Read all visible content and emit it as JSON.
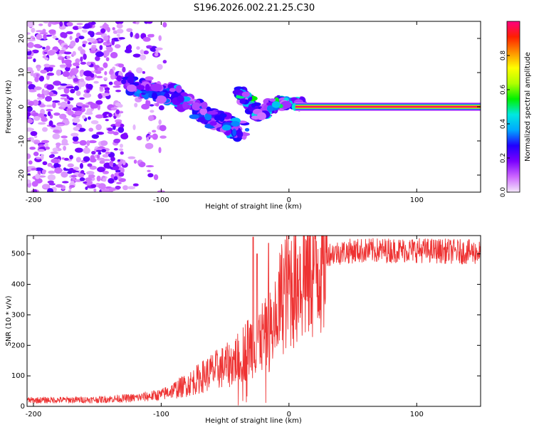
{
  "title": "S196.2026.002.21.25.C30",
  "chart_data": [
    {
      "type": "heatmap",
      "xlabel": "Height of straight line (km)",
      "ylabel": "Frequency (Hz)",
      "xlim": [
        -205,
        150
      ],
      "ylim": [
        -25,
        25
      ],
      "xticks": [
        -200,
        -100,
        0,
        100
      ],
      "yticks": [
        -20,
        -10,
        0,
        10,
        20
      ],
      "colorbar": {
        "label": "Normalized spectral amplitude",
        "range": [
          0,
          1
        ],
        "ticks": [
          "0.0",
          "0.2",
          "0.4",
          "0.6",
          "0.8"
        ],
        "colormap": [
          "#f4e8fb",
          "#cc66ff",
          "#7a00ff",
          "#2000ff",
          "#00a8ff",
          "#00e8e0",
          "#00f000",
          "#b0ff00",
          "#ffff00",
          "#ff9000",
          "#ff2000",
          "#ff0080"
        ]
      },
      "features": [
        {
          "name": "noise-field",
          "x_range": [
            -205,
            -97
          ],
          "f_range": [
            -25,
            25
          ],
          "amplitude": 0.15
        },
        {
          "name": "descending-track",
          "points": [
            [
              -130,
              7.5
            ],
            [
              -110,
              5
            ],
            [
              -90,
              3.5
            ],
            [
              -75,
              0
            ],
            [
              -60,
              -3
            ],
            [
              -45,
              -6
            ],
            [
              -35,
              -7.5
            ]
          ],
          "amplitude": 0.4
        },
        {
          "name": "rebound-cluster",
          "points": [
            [
              -40,
              4
            ],
            [
              -32,
              2
            ],
            [
              -25,
              -2.5
            ],
            [
              -18,
              -1
            ],
            [
              -10,
              1
            ],
            [
              0,
              1.5
            ],
            [
              10,
              0.5
            ]
          ],
          "amplitude": 0.55
        },
        {
          "name": "steady-line",
          "x_range": [
            5,
            150
          ],
          "f": 0,
          "amplitude": 1.0
        }
      ]
    },
    {
      "type": "line",
      "xlabel": "Height of straight line (km)",
      "ylabel": "SNR (10 * v/v)",
      "xlim": [
        -205,
        150
      ],
      "ylim": [
        0,
        560
      ],
      "xticks": [
        -200,
        -100,
        0,
        100
      ],
      "yticks": [
        0,
        100,
        200,
        300,
        400,
        500
      ],
      "color": "#ee3333",
      "profile": [
        [
          -205,
          20
        ],
        [
          -150,
          22
        ],
        [
          -120,
          28
        ],
        [
          -100,
          38
        ],
        [
          -80,
          70
        ],
        [
          -60,
          115
        ],
        [
          -45,
          140
        ],
        [
          -35,
          180
        ],
        [
          -25,
          220
        ],
        [
          -18,
          230
        ],
        [
          -12,
          260
        ],
        [
          -5,
          370
        ],
        [
          0,
          400
        ],
        [
          10,
          420
        ],
        [
          20,
          465
        ],
        [
          30,
          500
        ],
        [
          50,
          510
        ],
        [
          100,
          512
        ],
        [
          150,
          505
        ]
      ],
      "spikes": [
        [
          -28,
          555
        ],
        [
          -25,
          500
        ],
        [
          -16,
          535
        ],
        [
          8,
          415
        ],
        [
          12,
          560
        ]
      ]
    }
  ]
}
